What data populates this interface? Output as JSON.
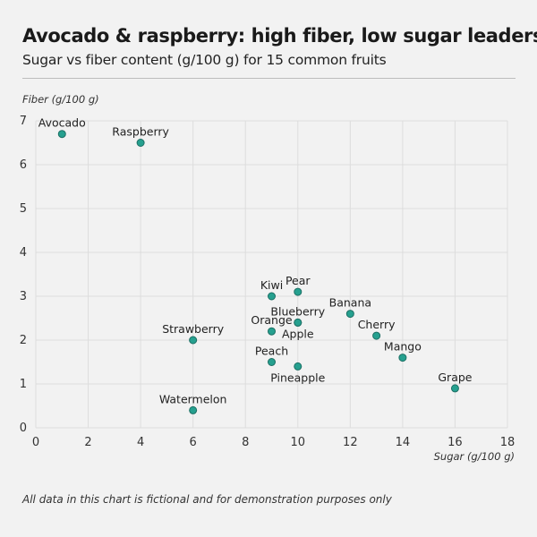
{
  "header": {
    "title": "Avocado & raspberry: high fiber, low sugar leaders",
    "subtitle": "Sugar vs fiber content (g/100 g) for 15 common fruits"
  },
  "footnote": "All data in this chart is fictional and for demonstration purposes only",
  "colors": {
    "point_fill": "#26a08f",
    "point_stroke": "#1c6f64",
    "grid": "#dddddd",
    "background": "#f2f2f2"
  },
  "chart_data": {
    "type": "scatter",
    "title": "Avocado & raspberry: high fiber, low sugar leaders",
    "subtitle": "Sugar vs fiber content (g/100 g) for 15 common fruits",
    "xlabel": "Sugar (g/100 g)",
    "ylabel": "Fiber (g/100 g)",
    "xlim": [
      0,
      18
    ],
    "ylim": [
      0,
      7
    ],
    "xticks": [
      0,
      2,
      4,
      6,
      8,
      10,
      12,
      14,
      16,
      18
    ],
    "yticks": [
      0,
      1,
      2,
      3,
      4,
      5,
      6,
      7
    ],
    "grid": true,
    "legend": "none",
    "points": [
      {
        "label": "Avocado",
        "x": 1,
        "y": 6.7,
        "label_pos": "above"
      },
      {
        "label": "Raspberry",
        "x": 4,
        "y": 6.5,
        "label_pos": "above"
      },
      {
        "label": "Kiwi",
        "x": 9,
        "y": 3.0,
        "label_pos": "above"
      },
      {
        "label": "Pear",
        "x": 10,
        "y": 3.1,
        "label_pos": "above"
      },
      {
        "label": "Banana",
        "x": 12,
        "y": 2.6,
        "label_pos": "above"
      },
      {
        "label": "Blueberry",
        "x": 10,
        "y": 2.4,
        "label_pos": "above"
      },
      {
        "label": "Orange",
        "x": 9,
        "y": 2.2,
        "label_pos": "above"
      },
      {
        "label": "Apple",
        "x": 10,
        "y": 2.4,
        "label_pos": "below"
      },
      {
        "label": "Cherry",
        "x": 13,
        "y": 2.1,
        "label_pos": "above"
      },
      {
        "label": "Strawberry",
        "x": 6,
        "y": 2.0,
        "label_pos": "above"
      },
      {
        "label": "Mango",
        "x": 14,
        "y": 1.6,
        "label_pos": "above"
      },
      {
        "label": "Peach",
        "x": 9,
        "y": 1.5,
        "label_pos": "above"
      },
      {
        "label": "Pineapple",
        "x": 10,
        "y": 1.4,
        "label_pos": "below"
      },
      {
        "label": "Grape",
        "x": 16,
        "y": 0.9,
        "label_pos": "above"
      },
      {
        "label": "Watermelon",
        "x": 6,
        "y": 0.4,
        "label_pos": "above"
      }
    ]
  }
}
